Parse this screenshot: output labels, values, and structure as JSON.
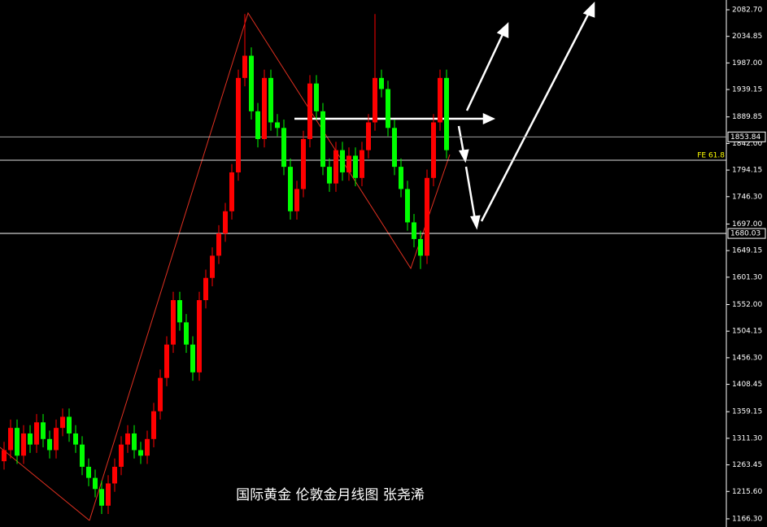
{
  "chart_data": {
    "type": "candlestick",
    "title": "国际黄金 伦敦金月线图 张尧浠",
    "up_color": "#ff0000",
    "down_color": "#00ff00",
    "ylim": [
      1151.6,
      2100.3
    ],
    "yticks": [
      {
        "value": 2082.7,
        "label": "2082.70"
      },
      2034.85,
      {
        "value": 1987,
        "label": "1987.00"
      },
      1939.15,
      1889.85,
      {
        "value": 1842,
        "label": "1842.00"
      },
      1794.15,
      {
        "value": 1746.3,
        "label": "1746.30"
      },
      {
        "value": 1697,
        "label": "1697.00"
      },
      1649.15,
      {
        "value": 1601.3,
        "label": "1601.30"
      },
      {
        "value": 1552,
        "label": "1552.00"
      },
      1504.15,
      {
        "value": 1456.3,
        "label": "1456.30"
      },
      1408.45,
      1359.15,
      {
        "value": 1311.3,
        "label": "1311.30"
      },
      1263.45,
      {
        "value": 1215.6,
        "label": "1215.60"
      },
      {
        "value": 1166.3,
        "label": "1166.30"
      }
    ],
    "levels": [
      {
        "value": 1853.84,
        "label": "1853.84",
        "color": "#a0a0a0"
      },
      {
        "value": 1811.8,
        "label": "FE 61.8",
        "color": "#e0e0e0"
      },
      {
        "value": 1680.03,
        "label": "1680.03",
        "color": "#ffffff"
      }
    ],
    "open": [
      1270,
      1290,
      1330,
      1280,
      1320,
      1300,
      1340,
      1310,
      1290,
      1330,
      1350,
      1320,
      1300,
      1260,
      1240,
      1220,
      1190,
      1230,
      1260,
      1300,
      1320,
      1290,
      1280,
      1310,
      1360,
      1420,
      1480,
      1560,
      1520,
      1480,
      1430,
      1560,
      1600,
      1640,
      1680,
      1720,
      1790,
      1960,
      2000,
      1900,
      1850,
      1960,
      1880,
      1870,
      1800,
      1720,
      1760,
      1850,
      1950,
      1900,
      1800,
      1770,
      1830,
      1790,
      1820,
      1780,
      1830,
      1880,
      1960,
      1940,
      1870,
      1800,
      1760,
      1700,
      1670,
      1640,
      1780,
      1880,
      1960
    ],
    "high": [
      1305,
      1345,
      1345,
      1335,
      1335,
      1355,
      1355,
      1325,
      1345,
      1365,
      1365,
      1335,
      1315,
      1275,
      1255,
      1235,
      1245,
      1275,
      1315,
      1335,
      1335,
      1305,
      1325,
      1375,
      1435,
      1495,
      1575,
      1575,
      1535,
      1495,
      1575,
      1615,
      1655,
      1695,
      1735,
      1805,
      1975,
      2075,
      2015,
      1915,
      1975,
      1975,
      1895,
      1885,
      1815,
      1775,
      1865,
      1965,
      1965,
      1915,
      1815,
      1845,
      1845,
      1835,
      1835,
      1845,
      1895,
      2075,
      1975,
      1955,
      1885,
      1815,
      1775,
      1715,
      1685,
      1795,
      1895,
      1975,
      1975
    ],
    "low": [
      1255,
      1275,
      1265,
      1265,
      1285,
      1285,
      1295,
      1275,
      1275,
      1315,
      1305,
      1285,
      1245,
      1225,
      1205,
      1175,
      1175,
      1215,
      1245,
      1285,
      1275,
      1265,
      1265,
      1295,
      1345,
      1405,
      1465,
      1505,
      1465,
      1415,
      1415,
      1545,
      1585,
      1625,
      1665,
      1705,
      1775,
      1945,
      1885,
      1835,
      1835,
      1865,
      1855,
      1785,
      1705,
      1705,
      1745,
      1835,
      1885,
      1785,
      1755,
      1755,
      1775,
      1775,
      1765,
      1765,
      1815,
      1865,
      1925,
      1855,
      1785,
      1745,
      1685,
      1655,
      1616,
      1625,
      1765,
      1865,
      1815
    ],
    "close": [
      1290,
      1330,
      1280,
      1320,
      1300,
      1340,
      1310,
      1290,
      1330,
      1350,
      1320,
      1300,
      1260,
      1240,
      1220,
      1190,
      1230,
      1260,
      1300,
      1320,
      1290,
      1280,
      1310,
      1360,
      1420,
      1480,
      1560,
      1520,
      1480,
      1430,
      1560,
      1600,
      1640,
      1680,
      1720,
      1790,
      1960,
      2000,
      1900,
      1850,
      1960,
      1880,
      1870,
      1800,
      1720,
      1760,
      1850,
      1950,
      1900,
      1800,
      1770,
      1830,
      1790,
      1820,
      1780,
      1830,
      1880,
      1960,
      1940,
      1870,
      1800,
      1760,
      1700,
      1670,
      1640,
      1780,
      1880,
      1960,
      1830
    ]
  }
}
